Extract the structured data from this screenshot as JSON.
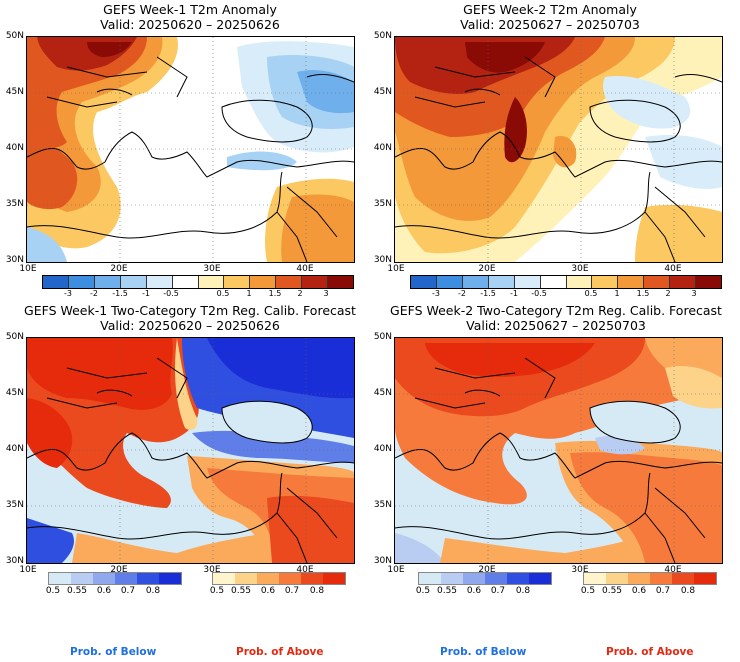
{
  "panels": [
    {
      "title": "GEFS Week-1 T2m Anomaly",
      "valid": "Valid: 20250620 – 20250626",
      "kind": "anomaly",
      "week": 1
    },
    {
      "title": "GEFS Week-2 T2m Anomaly",
      "valid": "Valid: 20250627 – 20250703",
      "kind": "anomaly",
      "week": 2
    },
    {
      "title": "GEFS Week-1 Two-Category T2m Reg. Calib. Forecast",
      "valid": "Valid: 20250620 – 20250626",
      "kind": "prob",
      "week": 1
    },
    {
      "title": "GEFS Week-2 Two-Category T2m Reg. Calib. Forecast",
      "valid": "Valid: 20250627 – 20250703",
      "kind": "prob",
      "week": 2
    }
  ],
  "map_axes": {
    "lat_ticks": [
      "50N",
      "45N",
      "40N",
      "35N",
      "30N"
    ],
    "lon_ticks": [
      "10E",
      "20E",
      "30E",
      "40E"
    ]
  },
  "anomaly_colorbar": {
    "labels": [
      "-3",
      "-2",
      "-1.5",
      "-1",
      "-0.5",
      "0.5",
      "1",
      "1.5",
      "2",
      "3"
    ],
    "colors": [
      "#2166c8",
      "#3d8ee0",
      "#6fb0ec",
      "#a8d2f4",
      "#d8ecfa",
      "#ffffff",
      "#fff2b8",
      "#fbc862",
      "#f4993a",
      "#e0581f",
      "#b42311",
      "#8a0a05"
    ]
  },
  "prob_colorbars": {
    "below": {
      "labels": [
        "0.5",
        "0.55",
        "0.6",
        "0.7",
        "0.8"
      ],
      "colors": [
        "#d6eaf6",
        "#b9cdf2",
        "#8fa8ee",
        "#5f7ee8",
        "#2f4fe0",
        "#1a2ed8"
      ]
    },
    "above": {
      "labels": [
        "0.5",
        "0.55",
        "0.6",
        "0.7",
        "0.8"
      ],
      "colors": [
        "#fff4cc",
        "#fdd38a",
        "#fbaa5c",
        "#f57a3c",
        "#ea4a1e",
        "#e62a0c"
      ]
    }
  },
  "footer": {
    "below": "Prob. of Below",
    "above": "Prob. of Above",
    "below_color": "#1e6fe0",
    "above_color": "#e22a12"
  }
}
